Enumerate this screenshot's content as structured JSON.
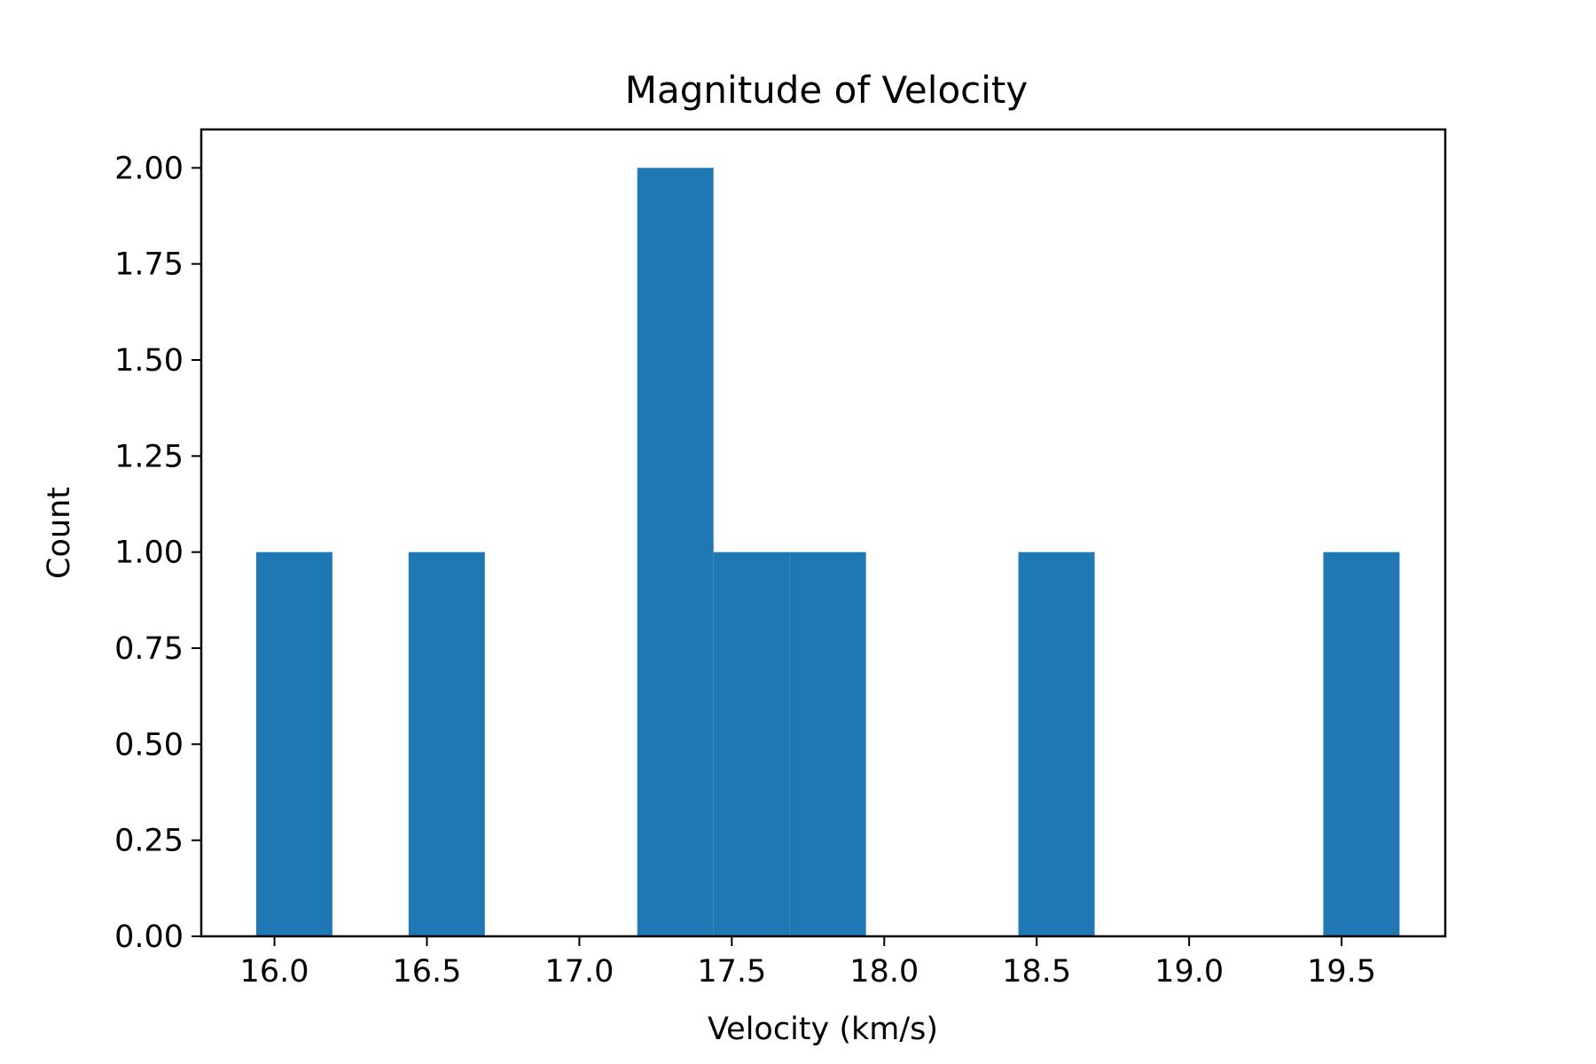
{
  "chart_data": {
    "type": "bar",
    "title": "Magnitude of Velocity",
    "xlabel": "Velocity (km/s)",
    "ylabel": "Count",
    "xlim": [
      15.76,
      19.84
    ],
    "ylim": [
      0,
      2.1
    ],
    "xticks": [
      16.0,
      16.5,
      17.0,
      17.5,
      18.0,
      18.5,
      19.0,
      19.5
    ],
    "xtick_labels": [
      "16.0",
      "16.5",
      "17.0",
      "17.5",
      "18.0",
      "18.5",
      "19.0",
      "19.5"
    ],
    "yticks": [
      0,
      0.25,
      0.5,
      0.75,
      1.0,
      1.25,
      1.5,
      1.75,
      2.0
    ],
    "ytick_labels": [
      "0.00",
      "0.25",
      "0.50",
      "0.75",
      "1.00",
      "1.25",
      "1.50",
      "1.75",
      "2.00"
    ],
    "bars": [
      {
        "x0": 15.94,
        "x1": 16.19,
        "value": 1
      },
      {
        "x0": 16.44,
        "x1": 16.69,
        "value": 1
      },
      {
        "x0": 17.19,
        "x1": 17.44,
        "value": 2
      },
      {
        "x0": 17.44,
        "x1": 17.69,
        "value": 1
      },
      {
        "x0": 17.69,
        "x1": 17.94,
        "value": 1
      },
      {
        "x0": 18.44,
        "x1": 18.69,
        "value": 1
      },
      {
        "x0": 19.44,
        "x1": 19.69,
        "value": 1
      }
    ],
    "bar_color": "#1f77b4",
    "grid": false,
    "legend": "none"
  }
}
